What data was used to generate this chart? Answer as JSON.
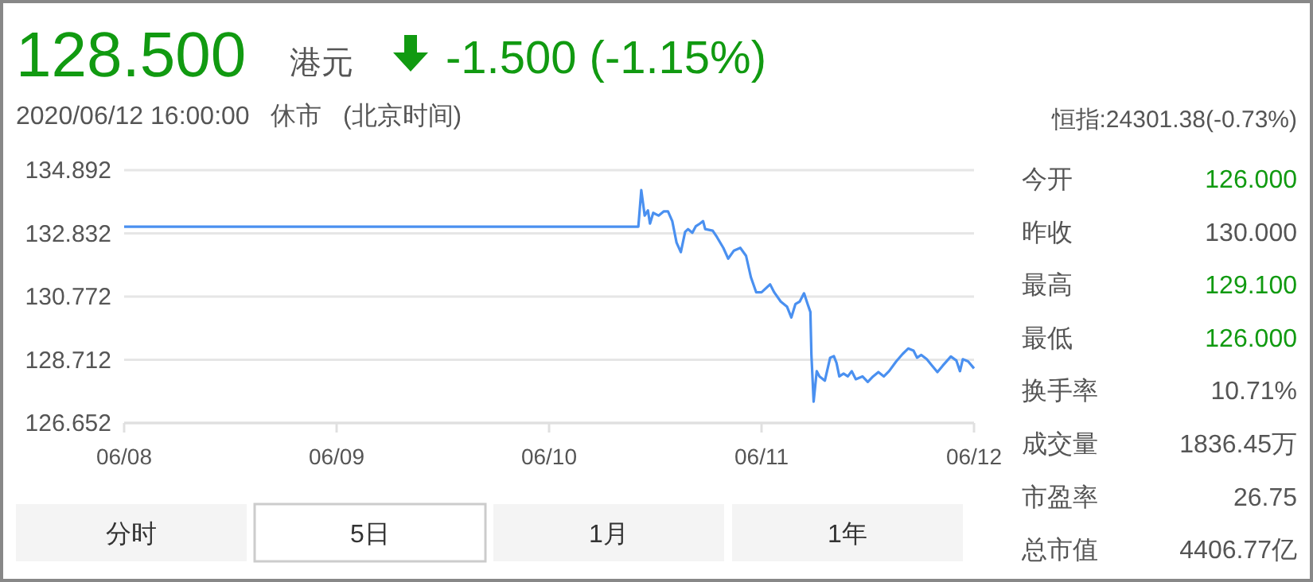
{
  "chart_data": [
    {
      "type": "line",
      "title": "128.500",
      "subtitle": "2020/06/12 16:00:00   休市   (北京时间)",
      "annotations": [
        "港元",
        "-1.500 (-1.15%)",
        "分时",
        "5日",
        "1月",
        "1年"
      ],
      "xlim": [
        "2020-06-08",
        "2020-06-12"
      ],
      "ylim": [
        126.652,
        134.892
      ],
      "xticks": [
        {
          "value": "2020-06-08",
          "label": "06/08"
        },
        {
          "value": "2020-06-09",
          "label": "06/09"
        },
        {
          "value": "2020-06-10",
          "label": "06/10"
        },
        {
          "value": "2020-06-11",
          "label": "06/11"
        },
        {
          "value": "2020-06-12",
          "label": "06/12"
        }
      ],
      "yticks": [
        126.652,
        128.712,
        130.772,
        132.832,
        134.892
      ],
      "grid": "y",
      "series": [
        {
          "color": "#4a90f0",
          "x": [
            "2020-06-08T00:00",
            "2020-06-08T12:00",
            "2020-06-09T00:00",
            "2020-06-09T12:00",
            "2020-06-10T00:00",
            "2020-06-10T10:05",
            "2020-06-10T10:25",
            "2020-06-10T10:48",
            "2020-06-10T11:10",
            "2020-06-10T11:24",
            "2020-06-10T11:46",
            "2020-06-10T12:22",
            "2020-06-10T12:58",
            "2020-06-10T13:26",
            "2020-06-10T13:55",
            "2020-06-10T14:24",
            "2020-06-10T14:53",
            "2020-06-10T15:22",
            "2020-06-10T15:42",
            "2020-06-10T16:11",
            "2020-06-10T16:34",
            "2020-06-10T17:02",
            "2020-06-10T17:24",
            "2020-06-10T17:38",
            "2020-06-10T18:29",
            "2020-06-10T18:58",
            "2020-06-10T19:41",
            "2020-06-10T20:14",
            "2020-06-10T20:53",
            "2020-06-10T21:36",
            "2020-06-10T22:15",
            "2020-06-10T22:48",
            "2020-06-10T23:24",
            "2020-06-11T00:00",
            "2020-06-11T00:58",
            "2020-06-11T01:26",
            "2020-06-11T02:10",
            "2020-06-11T02:53",
            "2020-06-11T03:22",
            "2020-06-11T03:50",
            "2020-06-11T04:19",
            "2020-06-11T04:48",
            "2020-06-11T05:12",
            "2020-06-11T05:31",
            "2020-06-11T05:38",
            "2020-06-11T05:53",
            "2020-06-11T06:14",
            "2020-06-11T06:33",
            "2020-06-11T07:09",
            "2020-06-11T07:45",
            "2020-06-11T08:10",
            "2020-06-11T08:28",
            "2020-06-11T08:47",
            "2020-06-11T09:16",
            "2020-06-11T09:45",
            "2020-06-11T10:11",
            "2020-06-11T10:39",
            "2020-06-11T11:24",
            "2020-06-11T12:00",
            "2020-06-11T12:36",
            "2020-06-11T13:12",
            "2020-06-11T13:49",
            "2020-06-11T14:24",
            "2020-06-11T15:13",
            "2020-06-11T15:56",
            "2020-06-11T16:34",
            "2020-06-11T17:10",
            "2020-06-11T17:34",
            "2020-06-11T18:03",
            "2020-06-11T18:40",
            "2020-06-11T19:16",
            "2020-06-11T19:52",
            "2020-06-11T20:28",
            "2020-06-11T21:23",
            "2020-06-11T22:00",
            "2020-06-11T22:25",
            "2020-06-11T22:44",
            "2020-06-11T23:20",
            "2020-06-12T00:00"
          ],
          "values": [
            133.05,
            133.05,
            133.05,
            133.05,
            133.05,
            133.05,
            134.24,
            133.41,
            133.58,
            133.15,
            133.5,
            133.41,
            133.55,
            133.55,
            133.23,
            132.53,
            132.22,
            132.88,
            132.97,
            132.85,
            133.06,
            133.15,
            133.23,
            132.97,
            132.92,
            132.71,
            132.36,
            132.01,
            132.27,
            132.36,
            132.1,
            131.4,
            130.91,
            130.91,
            131.17,
            130.91,
            130.61,
            130.44,
            130.09,
            130.53,
            130.61,
            130.88,
            130.53,
            130.27,
            128.87,
            127.35,
            128.34,
            128.17,
            128.03,
            128.78,
            128.83,
            128.61,
            128.17,
            128.26,
            128.17,
            128.34,
            128.08,
            128.17,
            127.99,
            128.17,
            128.31,
            128.17,
            128.34,
            128.66,
            128.9,
            129.08,
            129.01,
            128.78,
            128.87,
            128.73,
            128.52,
            128.31,
            128.52,
            128.82,
            128.69,
            128.34,
            128.73,
            128.66,
            128.43
          ]
        }
      ]
    },
    {
      "type": "other",
      "annotations": [
        "恒指:24301.38(-0.73%)",
        "今开",
        "126.000",
        "昨收",
        "130.000",
        "最高",
        "129.100",
        "最低",
        "126.000",
        "换手率",
        "10.71%",
        "成交量",
        "1836.45万",
        "市盈率",
        "26.75",
        "总市值",
        "4406.77亿"
      ]
    }
  ]
}
